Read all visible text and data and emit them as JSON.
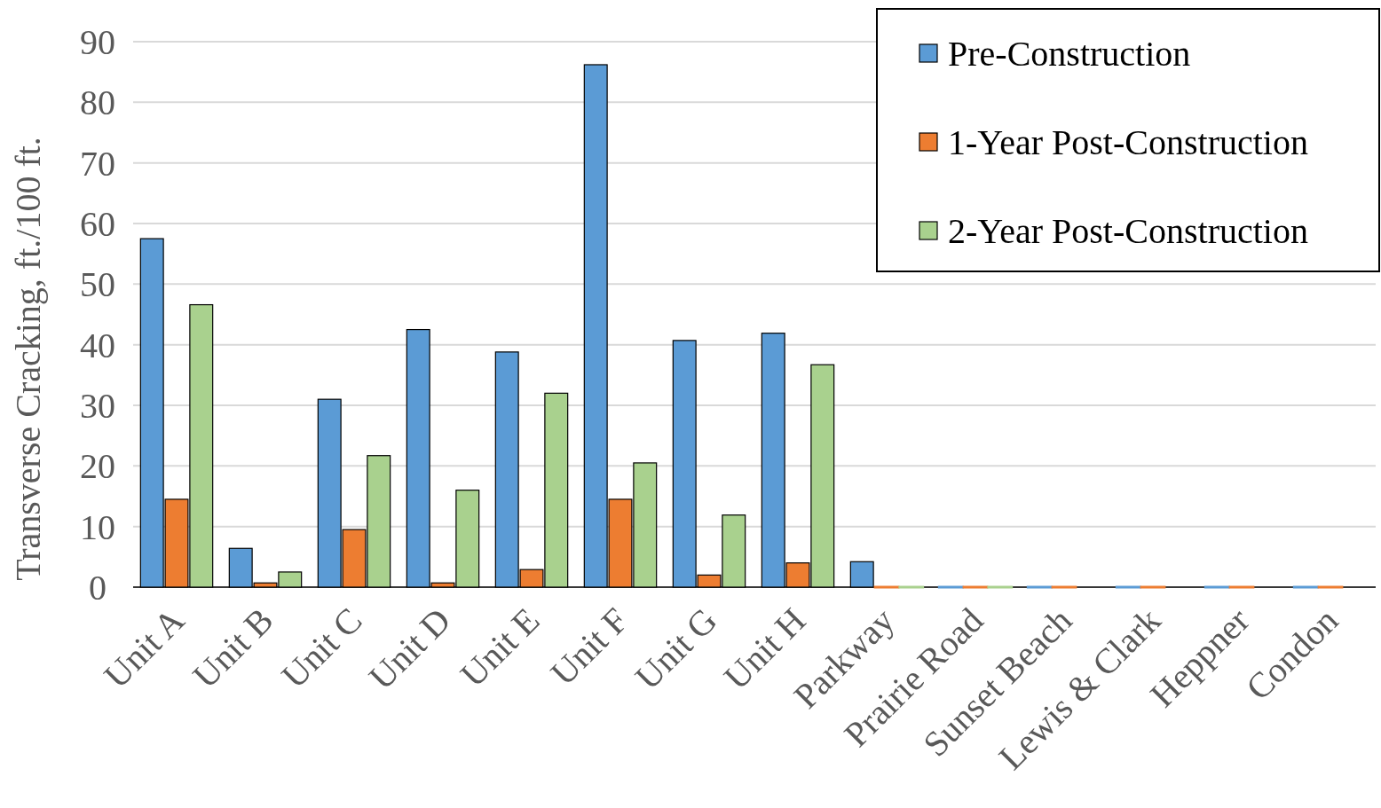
{
  "chart_data": {
    "type": "bar",
    "ylabel": "Transverse Cracking, ft./100 ft.",
    "categories": [
      "Unit A",
      "Unit B",
      "Unit C",
      "Unit D",
      "Unit E",
      "Unit F",
      "Unit G",
      "Unit H",
      "Parkway",
      "Prairie Road",
      "Sunset Beach",
      "Lewis & Clark",
      "Heppner",
      "Condon"
    ],
    "series": [
      {
        "name": "Pre-Construction",
        "color": "#5b9bd5",
        "values": [
          57.5,
          6.4,
          31,
          42.5,
          38.8,
          86.2,
          40.7,
          41.9,
          4.2,
          0,
          0,
          0,
          0,
          0
        ]
      },
      {
        "name": "1-Year Post-Construction",
        "color": "#ed7d31",
        "values": [
          14.5,
          0.7,
          9.5,
          0.7,
          2.9,
          14.5,
          2,
          4,
          0,
          0,
          0,
          0,
          0,
          0
        ]
      },
      {
        "name": "2-Year Post-Construction",
        "color": "#a9d18e",
        "values": [
          46.6,
          2.5,
          21.7,
          16,
          32,
          20.5,
          11.9,
          36.7,
          0,
          0,
          null,
          null,
          null,
          null
        ]
      }
    ],
    "ylim": [
      0,
      90
    ],
    "yticks": [
      0,
      10,
      20,
      30,
      40,
      50,
      60,
      70,
      80,
      90
    ],
    "grid": "y",
    "legend": "top right"
  }
}
